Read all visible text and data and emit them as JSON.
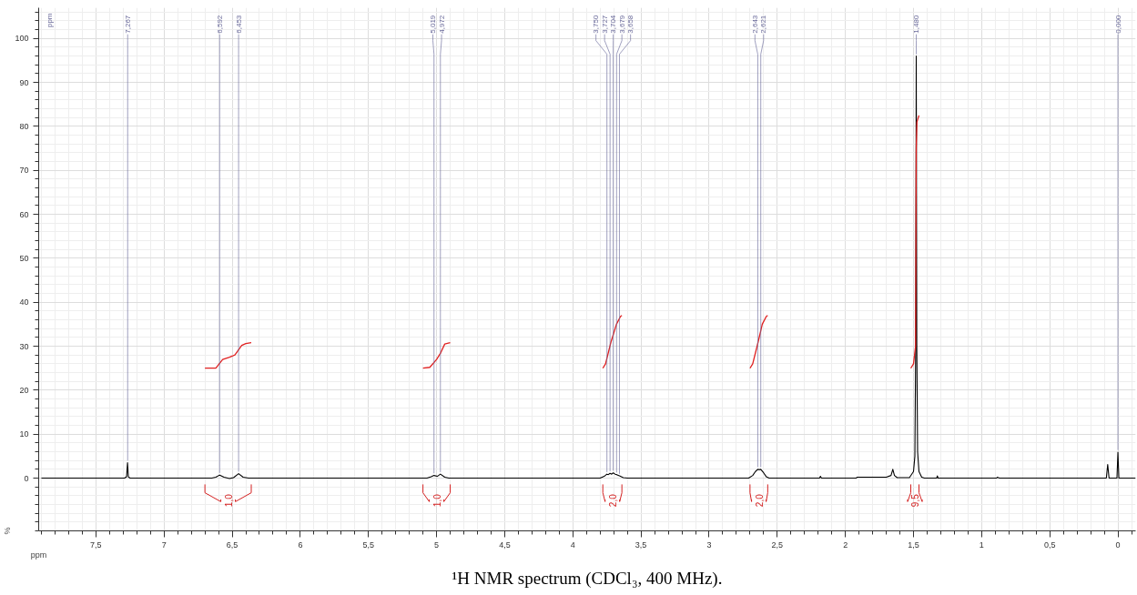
{
  "chart_data": {
    "type": "line",
    "title": "¹H NMR spectrum (CDCl₃, 400 MHz).",
    "xlabel": "ppm",
    "ylabel": "%",
    "xlim": [
      7.92,
      -0.13
    ],
    "ylim": [
      -12,
      107
    ],
    "xticks": [
      {
        "value": 7.5,
        "label": "7,5"
      },
      7,
      {
        "value": 6.5,
        "label": "6,5"
      },
      6,
      {
        "value": 5.5,
        "label": "5,5"
      },
      5,
      {
        "value": 4.5,
        "label": "4,5"
      },
      4,
      {
        "value": 3.5,
        "label": "3,5"
      },
      3,
      {
        "value": 2.5,
        "label": "2,5"
      },
      2,
      {
        "value": 1.5,
        "label": "1,5"
      },
      1,
      {
        "value": 0.5,
        "label": "0,5"
      },
      0
    ],
    "yticks": [
      0,
      10,
      20,
      30,
      40,
      50,
      60,
      70,
      80,
      90,
      100
    ],
    "grid": true,
    "marker": "none",
    "line_style": "solid",
    "series": [
      {
        "color": "#000000",
        "x": [
          7.9,
          7.29,
          7.275,
          7.268,
          7.262,
          7.25,
          6.65,
          6.62,
          6.592,
          6.56,
          6.52,
          6.49,
          6.453,
          6.42,
          6.38,
          5.07,
          5.04,
          5.019,
          4.995,
          4.972,
          4.94,
          4.91,
          3.8,
          3.77,
          3.75,
          3.74,
          3.727,
          3.715,
          3.704,
          3.69,
          3.679,
          3.658,
          3.63,
          3.6,
          2.71,
          2.68,
          2.66,
          2.643,
          2.632,
          2.621,
          2.6,
          2.58,
          2.56,
          2.19,
          2.183,
          2.176,
          1.92,
          1.915,
          1.7,
          1.665,
          1.652,
          1.64,
          1.62,
          1.53,
          1.5,
          1.49,
          1.484,
          1.48,
          1.476,
          1.47,
          1.46,
          1.44,
          1.42,
          1.33,
          1.325,
          1.32,
          0.89,
          0.885,
          0.87,
          0.085,
          0.075,
          0.065,
          0.007,
          0.0,
          -0.007,
          -0.13
        ],
        "values": [
          0,
          0,
          0.3,
          3.5,
          0.3,
          0,
          0,
          0.2,
          0.7,
          0.2,
          -0.1,
          0.1,
          1.0,
          0.2,
          0,
          0,
          0.3,
          0.6,
          0.4,
          0.9,
          0.2,
          0,
          0,
          0.4,
          0.9,
          0.8,
          1.1,
          0.9,
          1.2,
          0.9,
          0.8,
          0.5,
          0.1,
          0,
          0,
          0.6,
          1.5,
          2.0,
          1.9,
          2.0,
          1.2,
          0.3,
          0,
          0,
          0.4,
          0,
          0,
          0.2,
          0.2,
          0.6,
          2.0,
          0.6,
          0.1,
          0.1,
          1.5,
          5,
          30,
          96,
          30,
          6,
          1.5,
          0.2,
          0,
          0,
          0.5,
          0,
          0,
          0.2,
          0,
          0,
          3.1,
          0,
          0,
          5.9,
          0,
          0
        ]
      },
      {
        "color": "#e02020",
        "x": [
          6.7,
          6.62,
          6.57,
          6.52,
          6.48,
          6.43,
          6.4,
          6.36
        ],
        "values": [
          25,
          25,
          27,
          27.5,
          28,
          30.2,
          30.6,
          30.8
        ]
      },
      {
        "color": "#e02020",
        "x": [
          5.1,
          5.05,
          5.0,
          4.97,
          4.94,
          4.9
        ],
        "values": [
          25,
          25.2,
          27,
          28.5,
          30.5,
          30.8
        ]
      },
      {
        "color": "#e02020",
        "x": [
          3.78,
          3.76,
          3.72,
          3.68,
          3.65,
          3.64
        ],
        "values": [
          25,
          26,
          31,
          35,
          36.8,
          37
        ]
      },
      {
        "color": "#e02020",
        "x": [
          2.7,
          2.68,
          2.64,
          2.61,
          2.58,
          2.57
        ],
        "values": [
          25,
          26,
          31,
          35,
          36.8,
          37
        ]
      },
      {
        "color": "#e02020",
        "x": [
          1.52,
          1.5,
          1.485,
          1.48,
          1.475,
          1.46
        ],
        "values": [
          25,
          26,
          30,
          75,
          81,
          82.5
        ]
      }
    ],
    "annotations": [
      "ppm",
      "1,0",
      "1,0",
      "2,0",
      "2,0",
      "9,5",
      {
        "text": "7,267",
        "x": 7.267,
        "y": 3.5
      },
      {
        "text": "6,592",
        "x": 6.592,
        "y": 0.7
      },
      {
        "text": "6,453",
        "x": 6.453,
        "y": 1.0
      },
      {
        "text": "5,019",
        "x": 5.019,
        "y": 0.6
      },
      {
        "text": "4,972",
        "x": 4.972,
        "y": 0.9
      },
      {
        "text": "3,750",
        "x": 3.75,
        "y": 0.9
      },
      {
        "text": "3,727",
        "x": 3.727,
        "y": 1.1
      },
      {
        "text": "3,704",
        "x": 3.704,
        "y": 1.2
      },
      {
        "text": "3,679",
        "x": 3.679,
        "y": 0.8
      },
      {
        "text": "3,658",
        "x": 3.658,
        "y": 0.5
      },
      {
        "text": "2,643",
        "x": 2.643,
        "y": 2.0
      },
      {
        "text": "2,621",
        "x": 2.621,
        "y": 2.0
      },
      {
        "text": "1,480",
        "x": 1.48,
        "y": 96
      },
      {
        "text": "0,000",
        "x": 0.0,
        "y": 5.9
      }
    ]
  }
}
